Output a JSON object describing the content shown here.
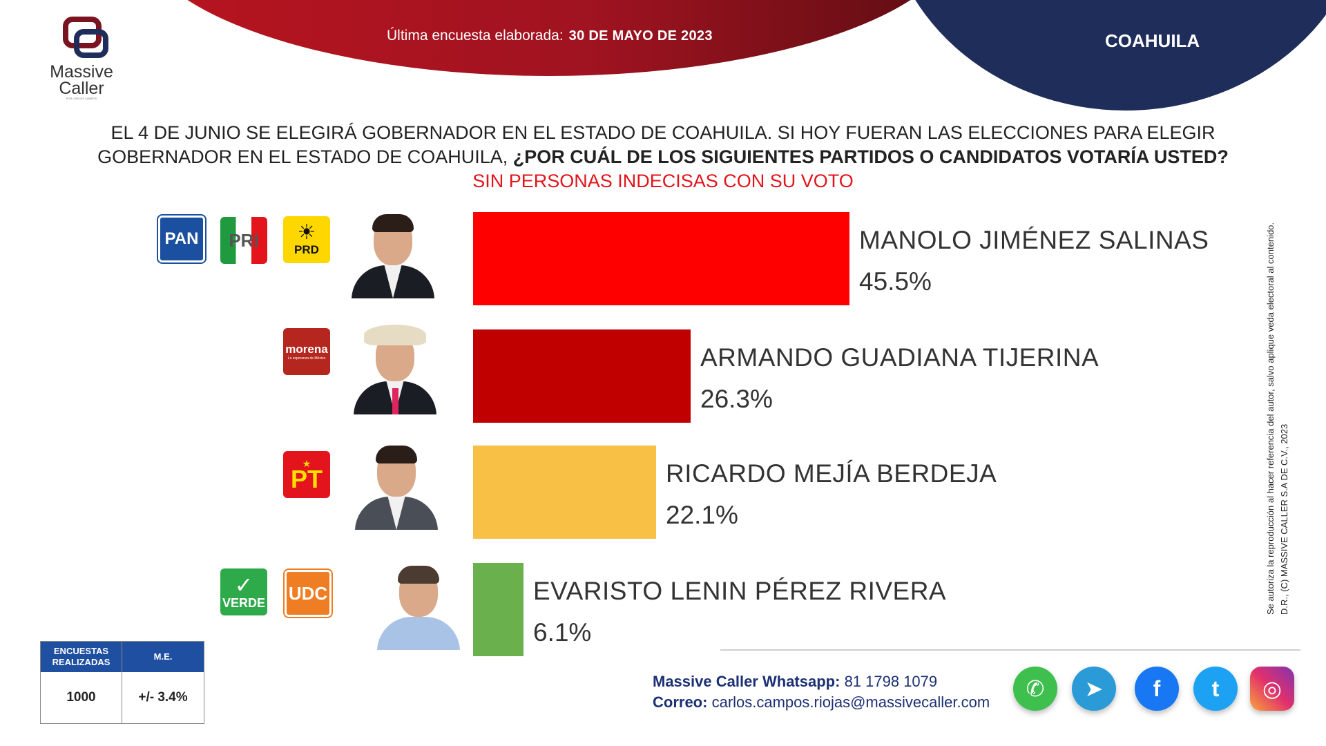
{
  "header": {
    "survey_label": "Última encuesta elaborada:",
    "survey_date": "30 DE MAYO DE 2023",
    "state": "COAHUILA"
  },
  "logo": {
    "line1": "Massive",
    "line2": "Caller",
    "tagline": "POR CARLOS CAMPOS"
  },
  "question": {
    "line1": "EL 4 DE JUNIO SE ELEGIRÁ GOBERNADOR EN EL ESTADO DE COAHUILA. SI HOY FUERAN LAS ELECCIONES PARA ELEGIR",
    "line2_regular": "GOBERNADOR EN EL ESTADO DE COAHUILA,",
    "line2_bold": "¿POR CUÁL DE LOS SIGUIENTES PARTIDOS O CANDIDATOS VOTARÍA USTED?",
    "subtitle": "SIN PERSONAS INDECISAS CON SU VOTO"
  },
  "parties": {
    "pan": "PAN",
    "pri": "PRI",
    "prd": "PRD",
    "prd_sun": "☀",
    "morena": "morena",
    "morena_tag": "La esperanza de México",
    "pt": "PT",
    "pt_star": "★",
    "verde": "VERDE",
    "verde_mark": "✓",
    "udc": "UDC"
  },
  "chart_data": {
    "type": "bar",
    "orientation": "horizontal",
    "title": "",
    "xlabel": "",
    "ylabel": "",
    "categories": [
      "MANOLO JIMÉNEZ SALINAS",
      "ARMANDO GUADIANA TIJERINA",
      "RICARDO MEJÍA BERDEJA",
      "EVARISTO LENIN PÉREZ RIVERA"
    ],
    "values": [
      45.5,
      26.3,
      22.1,
      6.1
    ],
    "value_labels": [
      "45.5%",
      "26.3%",
      "22.1%",
      "6.1%"
    ],
    "colors": [
      "#fe0000",
      "#c00000",
      "#f8c146",
      "#6ab04c"
    ],
    "xlim": [
      0,
      100
    ],
    "grid": false,
    "legend": "none"
  },
  "copyright": {
    "line1": "D.R., (C) MASSIVE CALLER S.A DE C.V., 2023",
    "line2": "Se autoriza la reproducción al hacer referencia del autor, salvo aplique veda electoral al contenido."
  },
  "stats": {
    "h1": "ENCUESTAS REALIZADAS",
    "h2": "M.E.",
    "v1": "1000",
    "v2": "+/- 3.4%"
  },
  "contact": {
    "wa_label": "Massive Caller Whatsapp:",
    "wa_value": "81 1798 1079",
    "mail_label": "Correo:",
    "mail_value": "carlos.campos.riojas@massivecaller.com"
  },
  "social": {
    "whatsapp": "✆",
    "telegram": "➤",
    "facebook": "f",
    "twitter": "t",
    "instagram": "◎"
  },
  "icons": [
    "whatsapp-icon",
    "telegram-icon",
    "facebook-icon",
    "twitter-icon",
    "instagram-icon"
  ]
}
